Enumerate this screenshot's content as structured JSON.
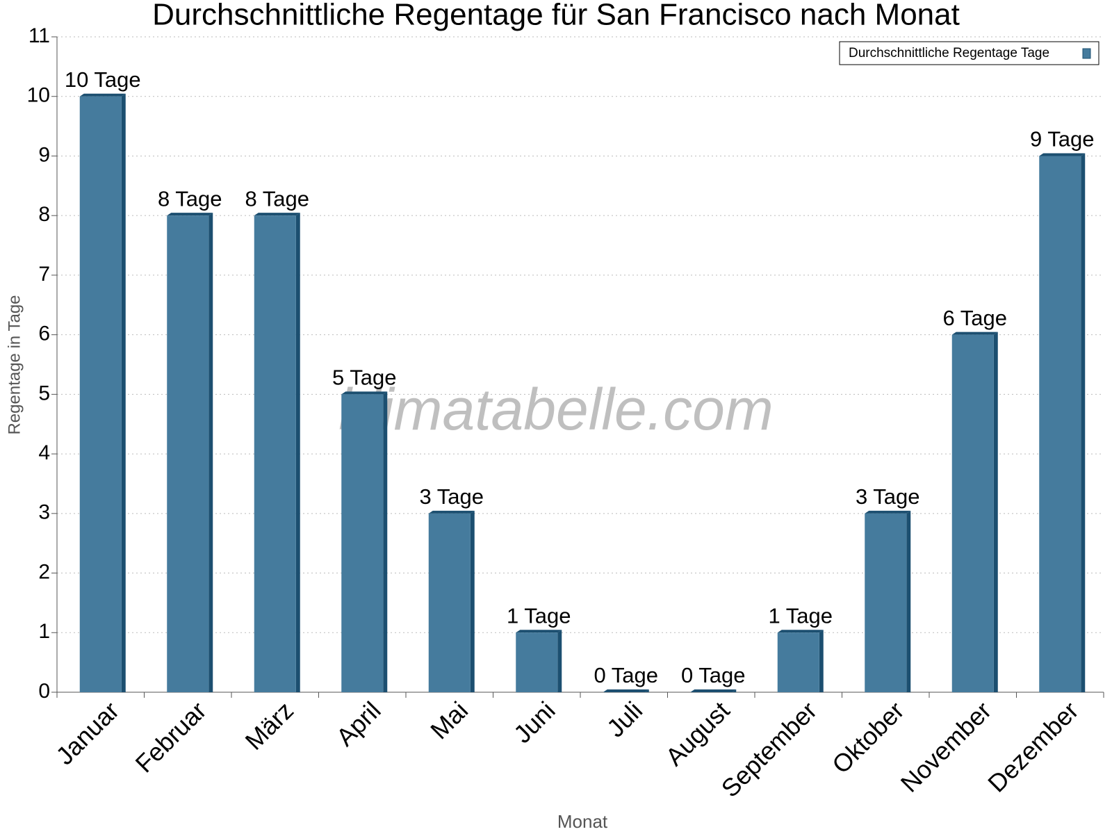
{
  "chart_data": {
    "type": "bar",
    "title": "Durchschnittliche Regentage für San Francisco nach Monat",
    "x_label": "Monat",
    "y_label": "Regentage in Tage",
    "watermark": "klimatabelle.com",
    "categories": [
      "Januar",
      "Februar",
      "März",
      "April",
      "Mai",
      "Juni",
      "Juli",
      "August",
      "September",
      "Oktober",
      "November",
      "Dezember"
    ],
    "series": [
      {
        "name": "Durchschnittliche Regentage Tage",
        "color": "#457b9d",
        "values": [
          10,
          8,
          8,
          5,
          3,
          1,
          0,
          0,
          1,
          3,
          6,
          9
        ],
        "value_labels": [
          "10 Tage",
          "8 Tage",
          "8 Tage",
          "5 Tage",
          "3 Tage",
          "1 Tage",
          "0 Tage",
          "0 Tage",
          "1 Tage",
          "3 Tage",
          "6 Tage",
          "9 Tage"
        ]
      }
    ],
    "ylim": [
      0,
      11
    ],
    "yticks": [
      0,
      1,
      2,
      3,
      4,
      5,
      6,
      7,
      8,
      9,
      10,
      11
    ],
    "grid": true,
    "legend": "top-right"
  }
}
